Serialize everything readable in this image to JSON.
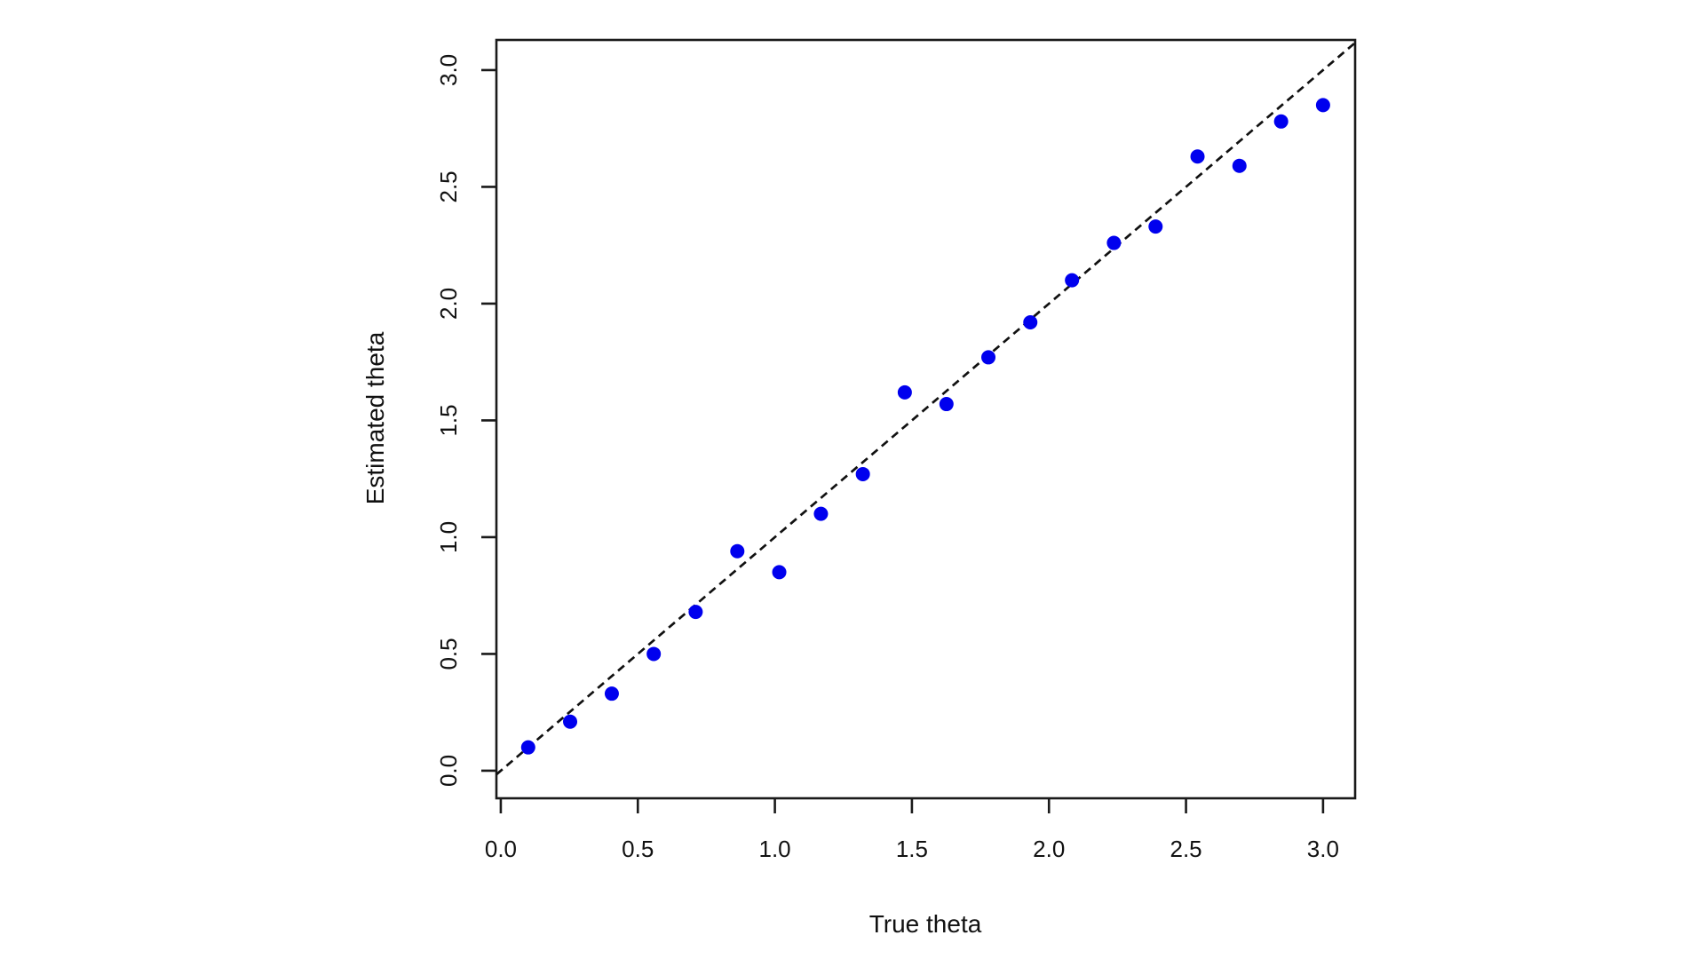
{
  "page": {
    "background": "#ffffff"
  },
  "chart_data": {
    "type": "scatter",
    "title": "",
    "xlabel": "True theta",
    "ylabel": "Estimated theta",
    "x": [
      0.1,
      0.253,
      0.405,
      0.558,
      0.711,
      0.863,
      1.016,
      1.168,
      1.321,
      1.474,
      1.626,
      1.779,
      1.932,
      2.084,
      2.237,
      2.389,
      2.542,
      2.695,
      2.847,
      3.0
    ],
    "y": [
      0.1,
      0.21,
      0.33,
      0.5,
      0.68,
      0.94,
      0.85,
      1.1,
      1.27,
      1.62,
      1.57,
      1.77,
      1.92,
      2.1,
      2.26,
      2.33,
      2.63,
      2.59,
      2.78,
      2.85
    ],
    "x_ticks": [
      0.0,
      0.5,
      1.0,
      1.5,
      2.0,
      2.5,
      3.0
    ],
    "x_tick_labels": [
      "0.0",
      "0.5",
      "1.0",
      "1.5",
      "2.0",
      "2.5",
      "3.0"
    ],
    "y_ticks": [
      0.0,
      0.5,
      1.0,
      1.5,
      2.0,
      2.5,
      3.0
    ],
    "y_tick_labels": [
      "0.0",
      "0.5",
      "1.0",
      "1.5",
      "2.0",
      "2.5",
      "3.0"
    ],
    "xlim": [
      -0.016,
      3.117
    ],
    "ylim": [
      -0.118,
      3.129
    ],
    "grid": false,
    "legend": "none",
    "point_color": "#0000EE",
    "point_radius_px": 8,
    "reference_line": {
      "type": "identity y = x",
      "slope": 1,
      "intercept": 0,
      "style": "dashed",
      "color": "#111111"
    },
    "axis_color": "#1a1a1a",
    "text_color": "#111111"
  }
}
